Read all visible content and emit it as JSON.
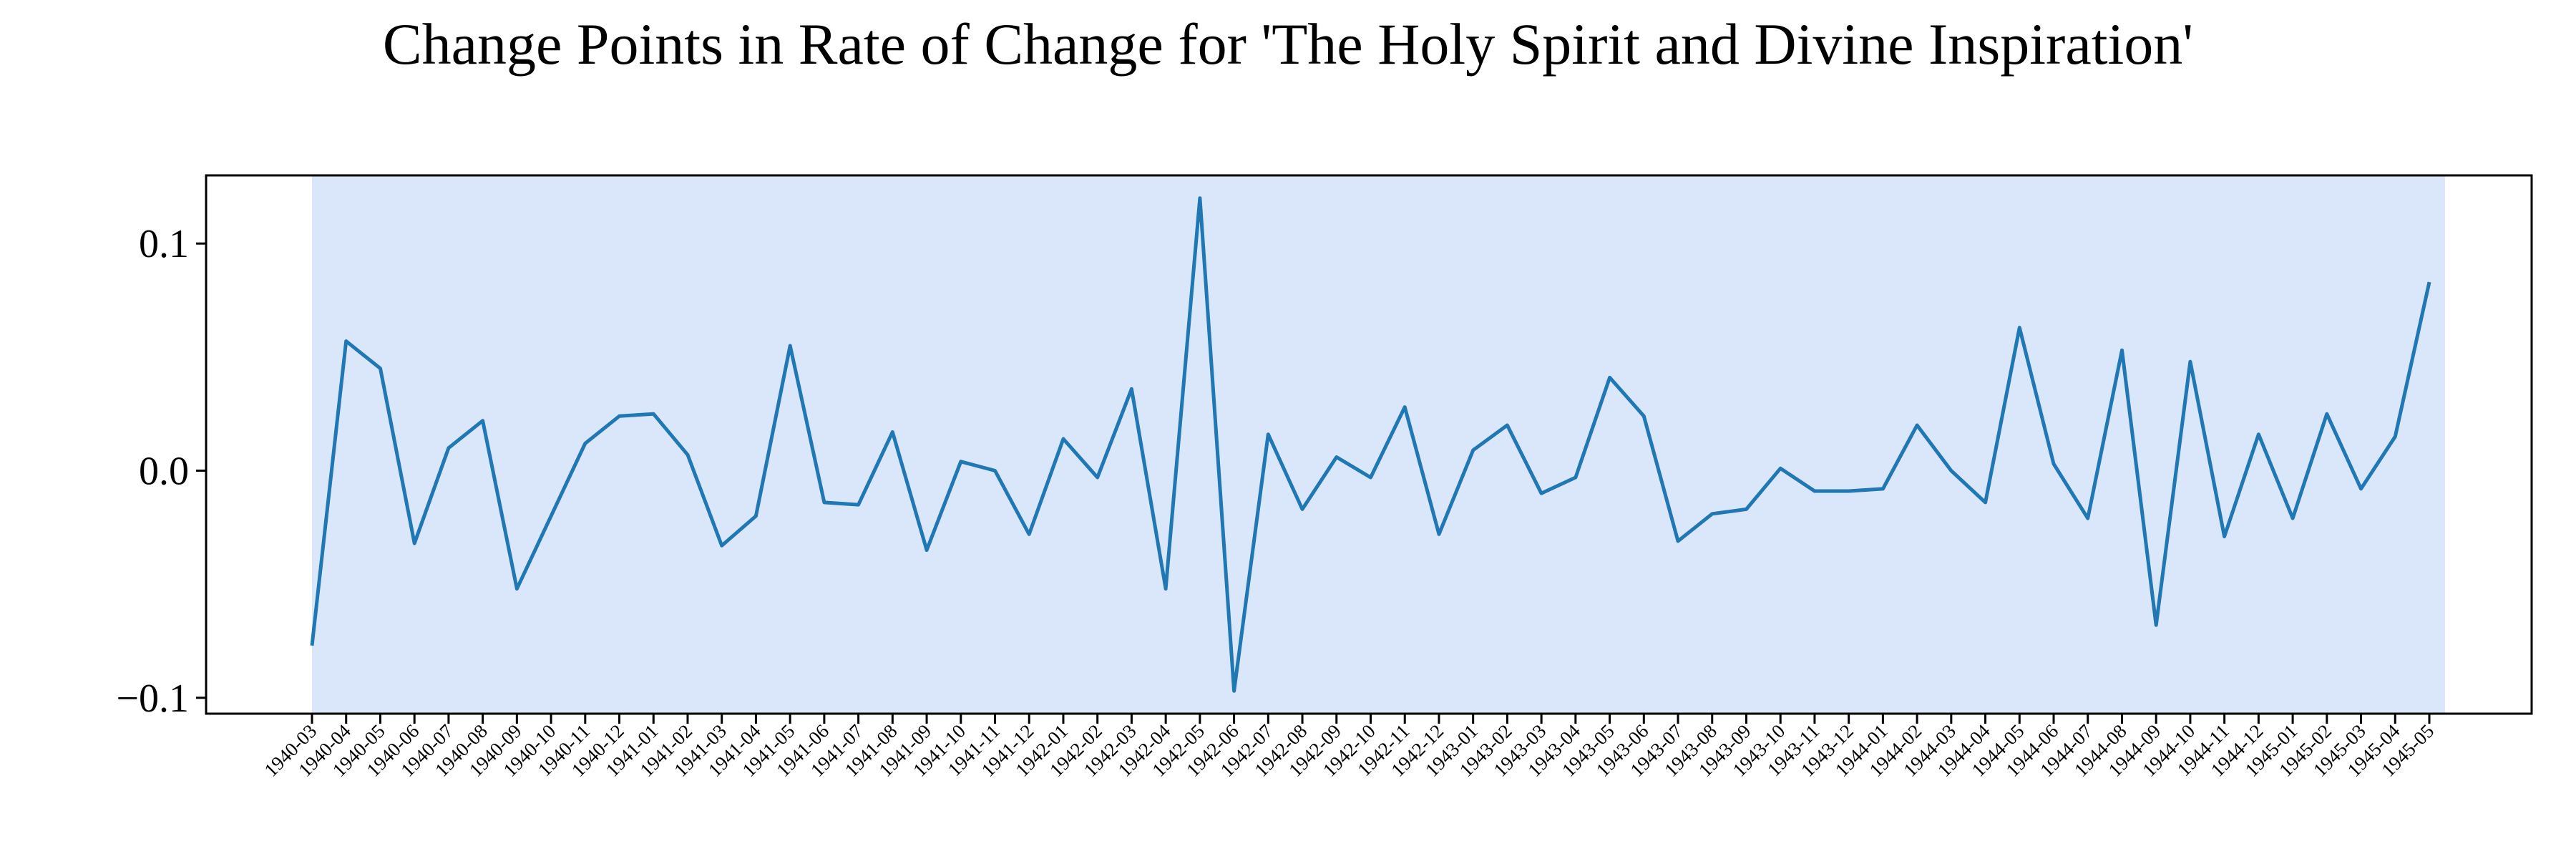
{
  "chart_data": {
    "type": "line",
    "title": "Change Points in Rate of Change for 'The Holy Spirit and Divine Inspiration'",
    "xlabel": "",
    "ylabel": "",
    "x": [
      "1940-03",
      "1940-04",
      "1940-05",
      "1940-06",
      "1940-07",
      "1940-08",
      "1940-09",
      "1940-10",
      "1940-11",
      "1940-12",
      "1941-01",
      "1941-02",
      "1941-03",
      "1941-04",
      "1941-05",
      "1941-06",
      "1941-07",
      "1941-08",
      "1941-09",
      "1941-10",
      "1941-11",
      "1941-12",
      "1942-01",
      "1942-02",
      "1942-03",
      "1942-04",
      "1942-05",
      "1942-06",
      "1942-07",
      "1942-08",
      "1942-09",
      "1942-10",
      "1942-11",
      "1942-12",
      "1943-01",
      "1943-02",
      "1943-03",
      "1943-04",
      "1943-05",
      "1943-06",
      "1943-07",
      "1943-08",
      "1943-09",
      "1943-10",
      "1943-11",
      "1943-12",
      "1944-01",
      "1944-02",
      "1944-03",
      "1944-04",
      "1944-05",
      "1944-06",
      "1944-07",
      "1944-08",
      "1944-09",
      "1944-10",
      "1944-11",
      "1944-12",
      "1945-01",
      "1945-02",
      "1945-03",
      "1945-04",
      "1945-05"
    ],
    "series": [
      {
        "values": [
          -0.077,
          0.057,
          0.045,
          -0.032,
          0.01,
          0.022,
          -0.052,
          -0.02,
          0.012,
          0.024,
          0.025,
          0.007,
          -0.033,
          -0.02,
          0.055,
          -0.014,
          -0.015,
          0.017,
          -0.035,
          0.004,
          0.0,
          -0.028,
          0.014,
          -0.003,
          0.036,
          -0.052,
          0.12,
          -0.097,
          0.016,
          -0.017,
          0.006,
          -0.003,
          0.028,
          -0.028,
          0.009,
          0.02,
          -0.01,
          -0.003,
          0.041,
          0.024,
          -0.031,
          -0.019,
          -0.017,
          0.001,
          -0.009,
          -0.009,
          -0.008,
          0.02,
          0.0,
          -0.014,
          0.063,
          0.003,
          -0.021,
          0.053,
          -0.068,
          0.048,
          -0.029,
          0.016,
          -0.021,
          0.025,
          -0.008,
          0.015,
          0.083
        ]
      }
    ],
    "ylim": [
      -0.107,
      0.13
    ],
    "yticks": [
      0.1,
      0.0,
      -0.1
    ],
    "ytick_labels": [
      "0.1",
      "0.0",
      "−0.1"
    ],
    "highlight_region": {
      "from": "1940-03",
      "to": "1945-05",
      "color": "#dae6fa"
    },
    "line_color": "#1f77b4",
    "grid": false,
    "legend": "none"
  }
}
